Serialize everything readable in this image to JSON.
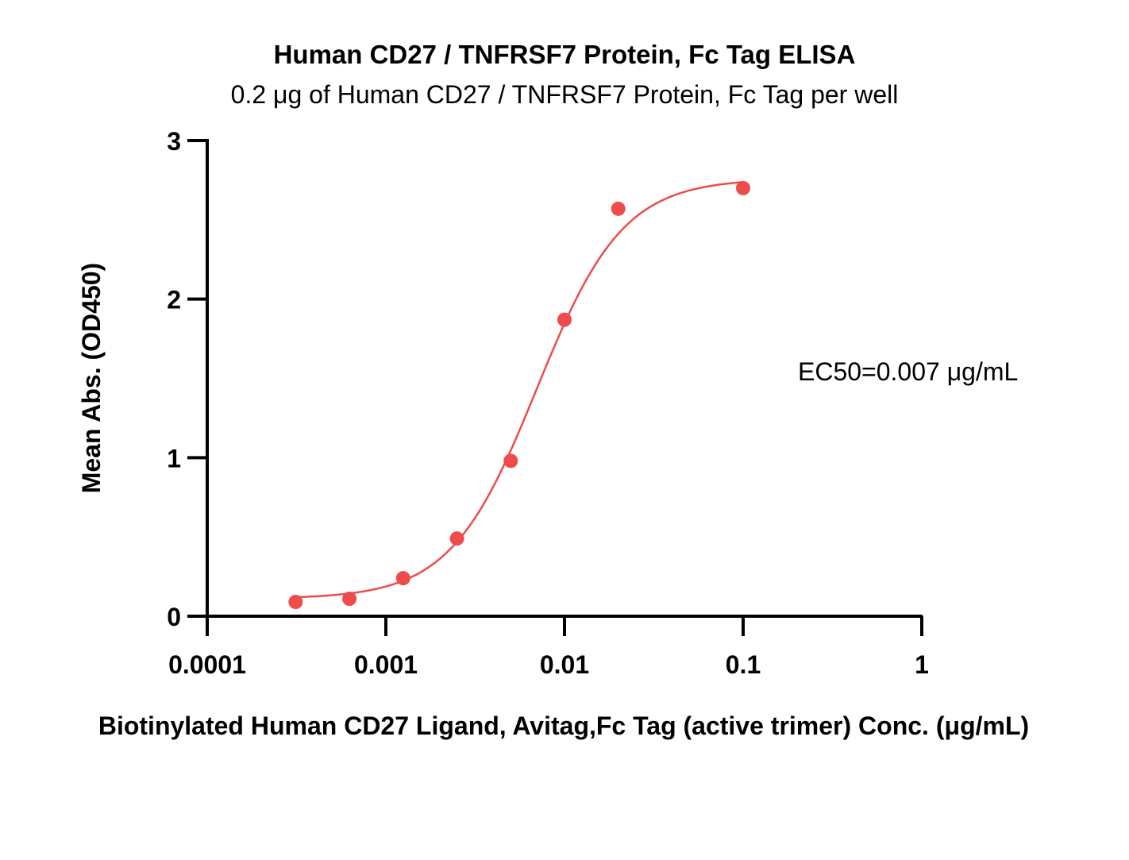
{
  "chart_data": {
    "type": "scatter",
    "title": "Human CD27 / TNFRSF7 Protein, Fc Tag ELISA",
    "subtitle": "0.2 μg of Human CD27 / TNFRSF7 Protein, Fc Tag per well",
    "xlabel": "Biotinylated Human CD27 Ligand, Avitag,Fc Tag (active trimer) Conc. (μg/mL)",
    "ylabel": "Mean Abs. (OD450)",
    "x_scale": "log",
    "xlim": [
      0.0001,
      1
    ],
    "ylim": [
      0,
      3
    ],
    "x_ticks": [
      0.0001,
      0.001,
      0.01,
      0.1,
      1
    ],
    "x_tick_labels": [
      "0.0001",
      "0.001",
      "0.01",
      "0.1",
      "1"
    ],
    "y_ticks": [
      0,
      1,
      2,
      3
    ],
    "y_tick_labels": [
      "0",
      "1",
      "2",
      "3"
    ],
    "grid": false,
    "annotation": "EC50=0.007 μg/mL",
    "series": [
      {
        "color": "#ee4b4b",
        "x": [
          0.0003125,
          0.000625,
          0.00125,
          0.0025,
          0.005,
          0.01,
          0.02,
          0.1
        ],
        "y": [
          0.09,
          0.11,
          0.24,
          0.49,
          0.98,
          1.87,
          2.57,
          2.7
        ]
      }
    ],
    "fit": {
      "model": "4PL",
      "ec50": 0.007,
      "bottom": 0.11,
      "top": 2.76,
      "hill": 1.8
    }
  }
}
